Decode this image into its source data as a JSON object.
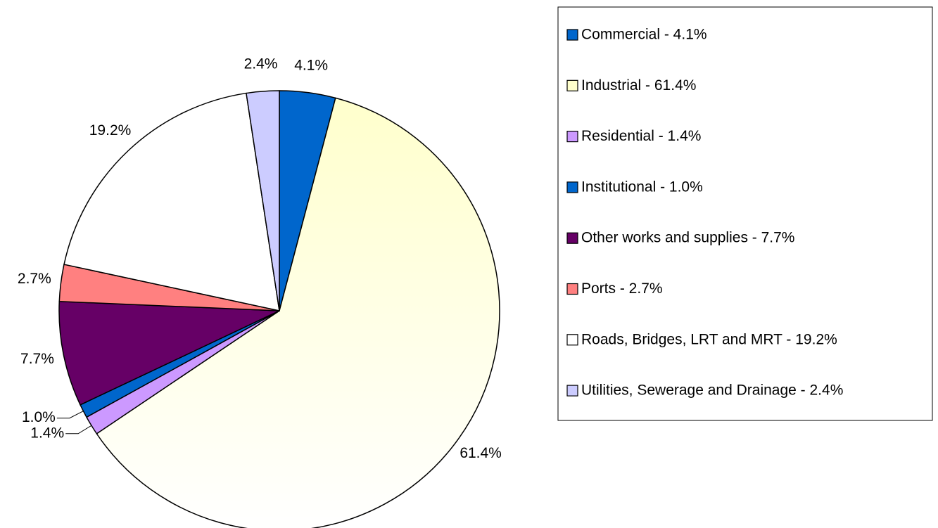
{
  "chart_data": {
    "type": "pie",
    "categories": [
      "Commercial - 4.1%",
      "Industrial - 61.4%",
      "Residential - 1.4%",
      "Institutional - 1.0%",
      "Other works and supplies - 7.7%",
      "Ports - 2.7%",
      "Roads, Bridges, LRT and MRT - 19.2%",
      "Utilities, Sewerage and Drainage - 2.4%"
    ],
    "values": [
      4.1,
      61.4,
      1.4,
      1.0,
      7.7,
      2.7,
      19.2,
      2.4
    ],
    "value_labels": [
      "4.1%",
      "61.4%",
      "1.4%",
      "1.0%",
      "7.7%",
      "2.7%",
      "19.2%",
      "2.4%"
    ],
    "colors": [
      "#0066cc",
      "#ffffcc",
      "#cc99ff",
      "#0066cc",
      "#660066",
      "#ff8080",
      "#ffffff",
      "#ccccff"
    ],
    "legend": "right"
  }
}
